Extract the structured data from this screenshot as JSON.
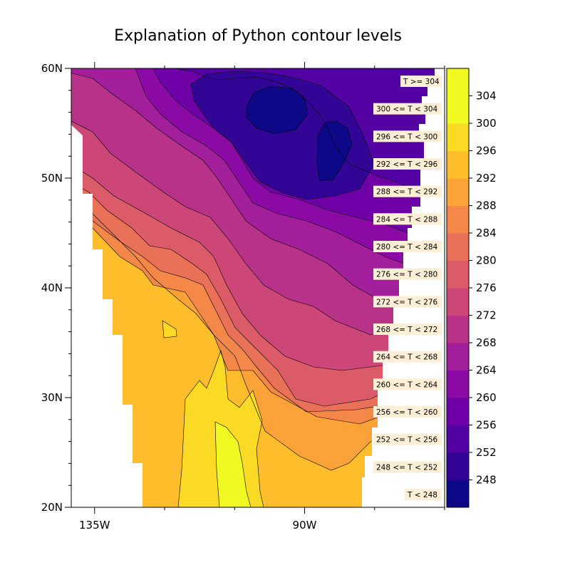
{
  "chart_data": {
    "type": "filled-contour",
    "title": "Explanation of Python contour levels",
    "x_axis": {
      "range_deg": [
        -140,
        -60
      ],
      "ticks": [
        -135,
        -90
      ],
      "tick_labels": [
        "135W",
        "90W"
      ]
    },
    "y_axis": {
      "range_deg": [
        20,
        60
      ],
      "ticks": [
        20,
        30,
        40,
        50,
        60
      ],
      "tick_labels": [
        "20N",
        "30N",
        "40N",
        "50N",
        "60N"
      ]
    },
    "levels": [
      248,
      252,
      256,
      260,
      264,
      268,
      272,
      276,
      280,
      284,
      288,
      292,
      296,
      300,
      304
    ],
    "colorbar": {
      "labels": [
        "248",
        "252",
        "256",
        "260",
        "264",
        "268",
        "272",
        "276",
        "280",
        "284",
        "288",
        "292",
        "296",
        "300",
        "304"
      ],
      "colors": [
        "#0d0887",
        "#330597",
        "#5302a3",
        "#6f00a8",
        "#8b0aa5",
        "#a31e9a",
        "#b83289",
        "#cc4778",
        "#db5c68",
        "#e97158",
        "#f48849",
        "#fba238",
        "#febd2a",
        "#fada24",
        "#f0f921",
        "#f0f921"
      ]
    },
    "annotations": [
      "T >= 304",
      "300 <= T < 304",
      "296 <= T < 300",
      "292 <= T < 296",
      "288 <= T < 292",
      "284 <= T < 288",
      "280 <= T < 284",
      "276 <= T < 280",
      "272 <= T < 276",
      "268 <= T < 272",
      "264 <= T < 268",
      "260 <= T < 264",
      "256 <= T < 260",
      "252 <= T < 256",
      "248 <= T < 252",
      "T < 248"
    ]
  }
}
